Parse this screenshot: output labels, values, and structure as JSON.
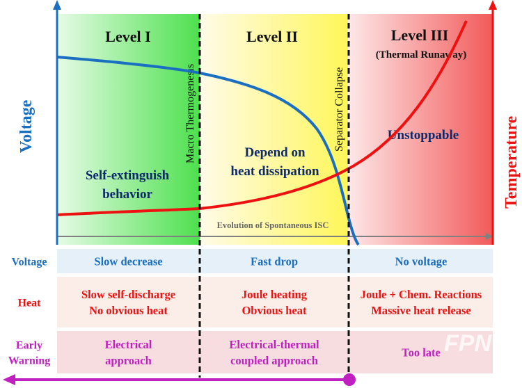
{
  "axes": {
    "left_label": "Voltage",
    "right_label": "Temperature",
    "bottom_label": "Evolution of Spontaneous ISC"
  },
  "levels": [
    {
      "title": "Level I",
      "subtitle": "",
      "description": [
        "Self-extinguish",
        "behavior"
      ],
      "color": "#33dd33"
    },
    {
      "title": "Level II",
      "subtitle": "",
      "description": [
        "Depend on",
        "heat dissipation"
      ],
      "color": "#ffff55"
    },
    {
      "title": "Level III",
      "subtitle": "(Thermal Runaway)",
      "description": [
        "Unstoppable"
      ],
      "color": "#f25050"
    }
  ],
  "boundaries": [
    "Macro Thermogenesis",
    "Separator Collapse"
  ],
  "curves": {
    "voltage_color": "#1a6fc0",
    "temperature_color": "#ee1111"
  },
  "table": {
    "rows": [
      {
        "label": [
          "Voltage"
        ],
        "cells": [
          [
            "Slow decrease"
          ],
          [
            "Fast drop"
          ],
          [
            "No voltage"
          ]
        ],
        "label_color": "#1a6fc0",
        "bg": "#e6f0f8"
      },
      {
        "label": [
          "Heat"
        ],
        "cells": [
          [
            "Slow self-discharge",
            "No obvious heat"
          ],
          [
            "Joule heating",
            "Obvious heat"
          ],
          [
            "Joule + Chem. Reactions",
            "Massive heat release"
          ]
        ],
        "label_color": "#ee1111",
        "bg": "#fbede7"
      },
      {
        "label": [
          "Early",
          "Warning"
        ],
        "cells": [
          [
            "Electrical",
            "approach"
          ],
          [
            "Electrical-thermal",
            "coupled approach"
          ],
          [
            "Too late"
          ]
        ],
        "label_color": "#c020c0",
        "bg": "#f8dde0"
      }
    ]
  },
  "watermark": "FPN"
}
